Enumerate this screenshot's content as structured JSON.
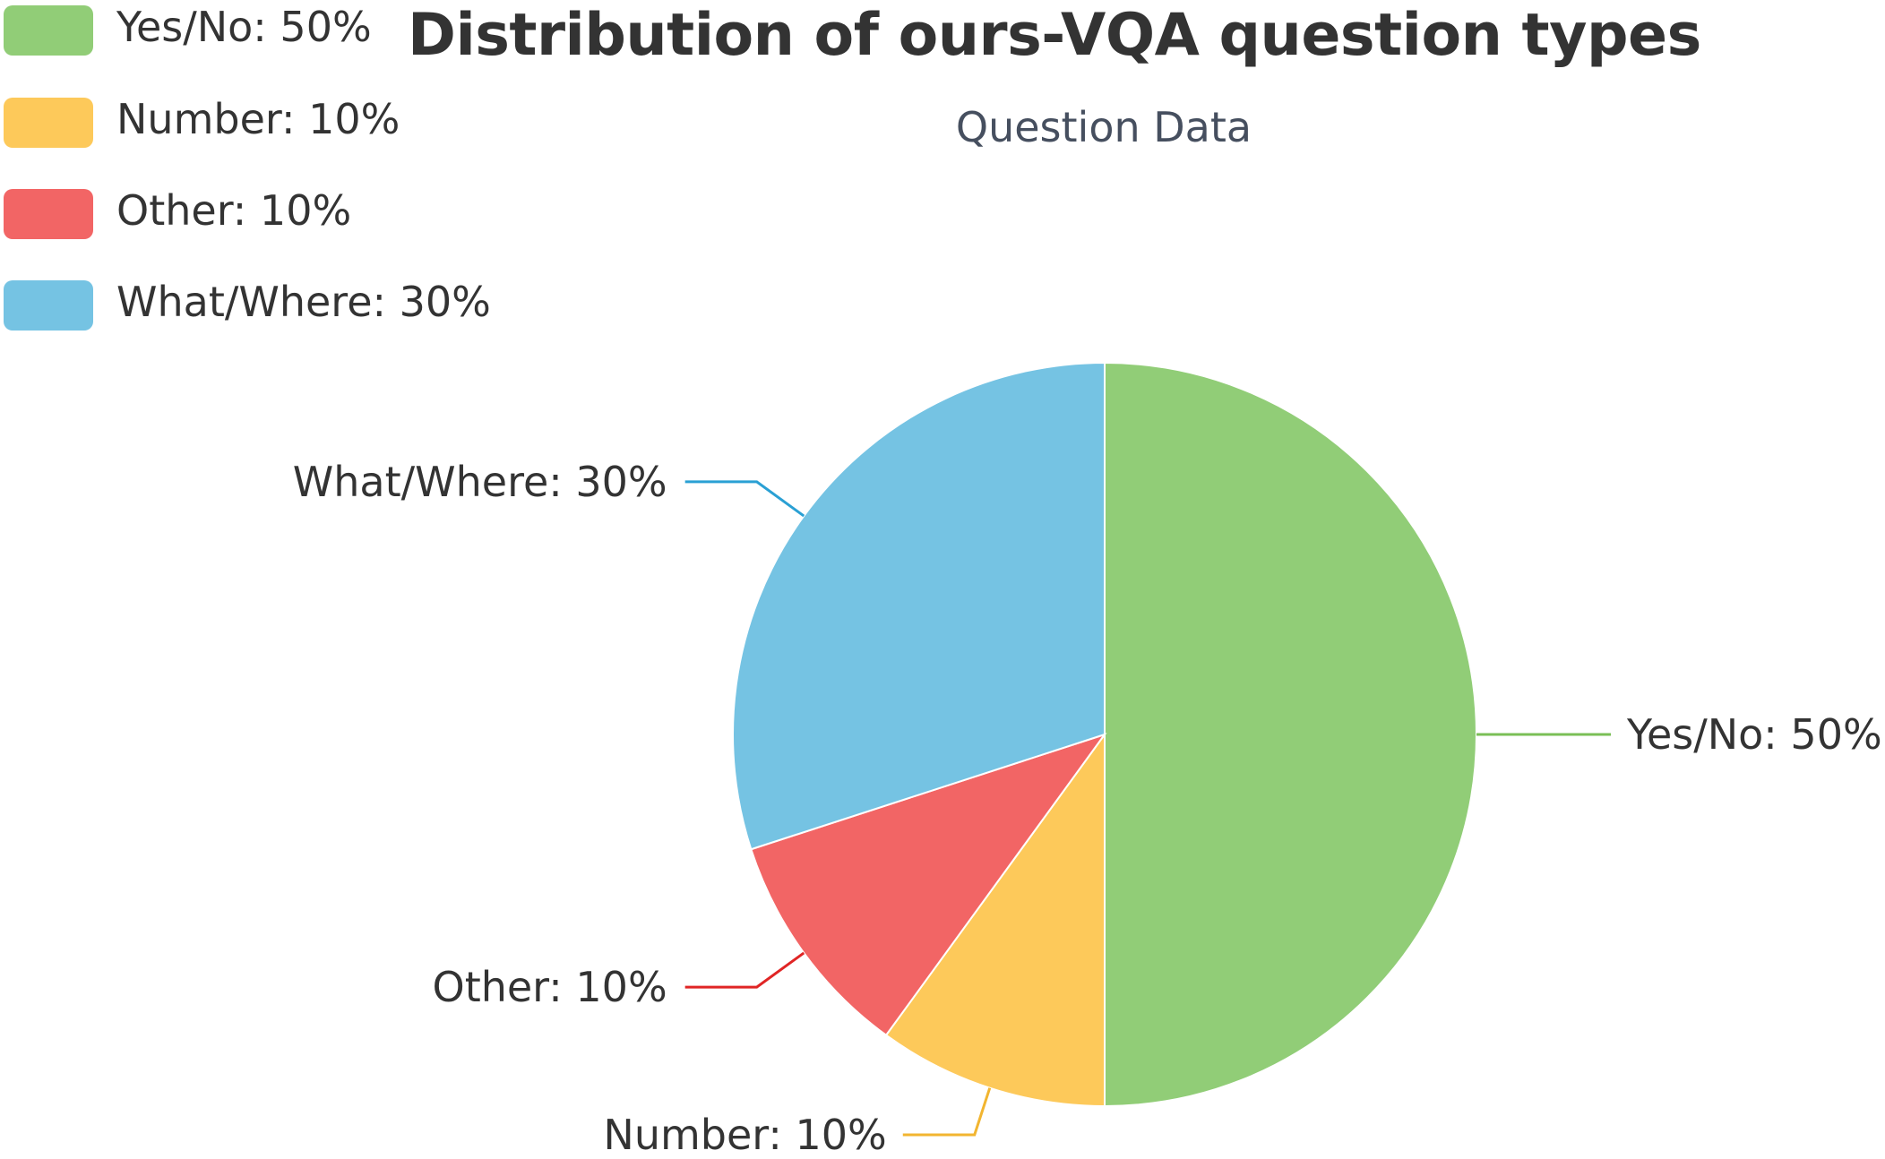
{
  "chart_data": {
    "type": "pie",
    "title": "Distribution of ours-VQA question types",
    "subtitle": "Question Data",
    "legend_position": "top-left",
    "slices": [
      {
        "name": "Yes/No",
        "value": 50,
        "label": "Yes/No: 50%",
        "color": "#91cd77"
      },
      {
        "name": "Number",
        "value": 10,
        "label": "Number: 10%",
        "color": "#fdc95a"
      },
      {
        "name": "Other",
        "value": 10,
        "label": "Other: 10%",
        "color": "#f26565"
      },
      {
        "name": "What/Where",
        "value": 30,
        "label": "What/Where: 30%",
        "color": "#75c3e3"
      }
    ],
    "leader_colors": [
      "#7abf56",
      "#f2b530",
      "#e02525",
      "#2aa0d4"
    ]
  }
}
